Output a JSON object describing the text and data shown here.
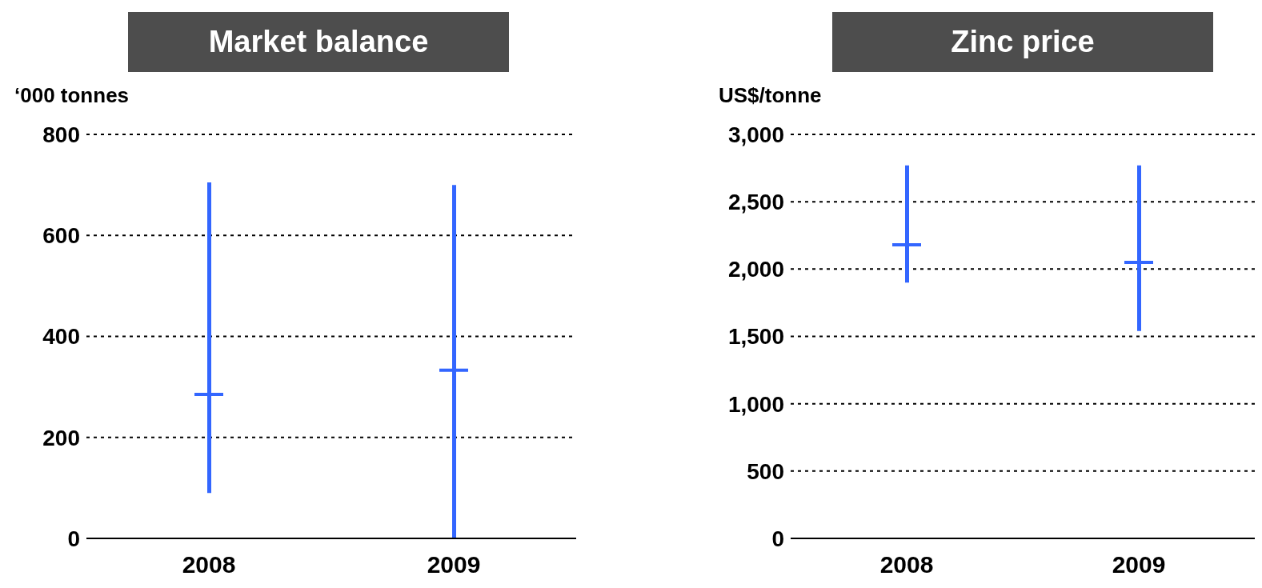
{
  "chart_data": [
    {
      "type": "bar",
      "title": "Market balance",
      "ylabel": "‘000 tonnes",
      "categories": [
        "2008",
        "2009"
      ],
      "series": [
        {
          "color": "#3366ff",
          "base": [
            90,
            0
          ],
          "values": [
            615,
            700
          ]
        },
        {
          "type": "scatter",
          "color": "#3366ff",
          "values": [
            285,
            333
          ]
        }
      ],
      "ylim": [
        0,
        800
      ],
      "yticks": [
        0,
        200,
        400,
        600,
        800
      ],
      "grid": "y",
      "marker": "cross"
    },
    {
      "type": "bar",
      "title": "Zinc price",
      "ylabel": "US$/tonne",
      "categories": [
        "2008",
        "2009"
      ],
      "series": [
        {
          "color": "#3366ff",
          "base": [
            1900,
            1540
          ],
          "values": [
            870,
            1230
          ]
        },
        {
          "type": "scatter",
          "color": "#3366ff",
          "values": [
            2180,
            2050
          ]
        }
      ],
      "ylim": [
        0,
        3000
      ],
      "yticks": [
        {
          "value": 0,
          "label": "0"
        },
        {
          "value": 500,
          "label": "500"
        },
        {
          "value": 1000,
          "label": "1,000"
        },
        {
          "value": 1500,
          "label": "1,500"
        },
        {
          "value": 2000,
          "label": "2,000"
        },
        {
          "value": 2500,
          "label": "2,500"
        },
        {
          "value": 3000,
          "label": "3,000"
        }
      ],
      "grid": "y",
      "marker": "cross"
    }
  ]
}
